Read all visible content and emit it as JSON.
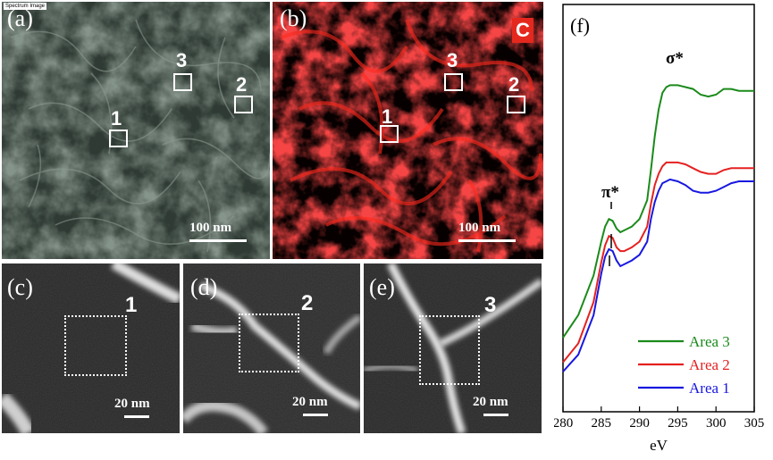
{
  "panels": {
    "a": {
      "label": "(a)",
      "tag": "Spectrum Image",
      "scale": "100 nm",
      "areas": [
        "1",
        "2",
        "3"
      ]
    },
    "b": {
      "label": "(b)",
      "element": "C",
      "scale": "100 nm",
      "areas": [
        "1",
        "2",
        "3"
      ]
    },
    "c": {
      "label": "(c)",
      "area": "1",
      "scale": "20 nm"
    },
    "d": {
      "label": "(d)",
      "area": "2",
      "scale": "20 nm"
    },
    "e": {
      "label": "(e)",
      "area": "3",
      "scale": "20 nm"
    }
  },
  "chart_data": {
    "type": "line",
    "panel_label": "(f)",
    "xlabel": "eV",
    "ylabel": "",
    "xlim": [
      280,
      305
    ],
    "ylim": [
      0,
      1
    ],
    "xticks": [
      280,
      285,
      290,
      295,
      300,
      305
    ],
    "annotations": {
      "pi": "π*",
      "sigma": "σ*"
    },
    "series": [
      {
        "name": "Area 3",
        "color": "#1a8a1a",
        "x": [
          280,
          282,
          284,
          285,
          285.5,
          286,
          286.5,
          287,
          287.5,
          288,
          289,
          290,
          291,
          291.5,
          292,
          292.5,
          293,
          293.5,
          294,
          295,
          296,
          297,
          298,
          299,
          300,
          301,
          302,
          303,
          304,
          305
        ],
        "y": [
          0.175,
          0.235,
          0.34,
          0.43,
          0.47,
          0.49,
          0.485,
          0.465,
          0.455,
          0.46,
          0.47,
          0.49,
          0.54,
          0.62,
          0.71,
          0.78,
          0.825,
          0.84,
          0.845,
          0.845,
          0.84,
          0.835,
          0.82,
          0.815,
          0.82,
          0.835,
          0.835,
          0.83,
          0.83,
          0.83
        ]
      },
      {
        "name": "Area 2",
        "color": "#e52020",
        "x": [
          280,
          282,
          284,
          285,
          285.5,
          286,
          286.5,
          287,
          287.5,
          288,
          289,
          290,
          291,
          291.5,
          292,
          292.5,
          293,
          293.5,
          294,
          295,
          296,
          297,
          298,
          299,
          300,
          301,
          302,
          303,
          304,
          305
        ],
        "y": [
          0.11,
          0.16,
          0.27,
          0.375,
          0.42,
          0.445,
          0.44,
          0.415,
          0.405,
          0.405,
          0.415,
          0.43,
          0.47,
          0.53,
          0.58,
          0.61,
          0.63,
          0.64,
          0.64,
          0.64,
          0.635,
          0.625,
          0.615,
          0.61,
          0.61,
          0.62,
          0.625,
          0.625,
          0.625,
          0.625
        ]
      },
      {
        "name": "Area 1",
        "color": "#1818e0",
        "x": [
          280,
          282,
          284,
          285,
          285.5,
          286,
          286.5,
          287,
          287.5,
          288,
          289,
          290,
          291,
          291.5,
          292,
          292.5,
          293,
          293.5,
          294,
          295,
          296,
          297,
          298,
          299,
          300,
          301,
          302,
          303,
          304,
          305
        ],
        "y": [
          0.085,
          0.13,
          0.235,
          0.345,
          0.39,
          0.41,
          0.405,
          0.38,
          0.365,
          0.37,
          0.38,
          0.395,
          0.43,
          0.49,
          0.535,
          0.565,
          0.585,
          0.59,
          0.595,
          0.59,
          0.58,
          0.565,
          0.56,
          0.56,
          0.565,
          0.575,
          0.585,
          0.59,
          0.59,
          0.59
        ]
      }
    ]
  }
}
